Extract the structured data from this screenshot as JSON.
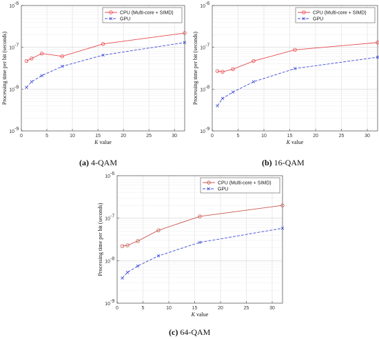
{
  "chart_data": [
    {
      "type": "line",
      "caption_letter": "(a)",
      "caption_text": "4-QAM",
      "xlabel_var": "K",
      "xlabel_rest": "value",
      "ylabel": "Processing time per bit (seconds)",
      "xlim": [
        0,
        32
      ],
      "ylim": [
        1e-09,
        1e-06
      ],
      "yscale": "log",
      "grid": true,
      "legend_position": "top-right",
      "x_ticks": [
        0,
        5,
        10,
        15,
        20,
        25,
        30
      ],
      "y_tick_labels": [
        "10",
        "10",
        "10",
        "10"
      ],
      "y_tick_exponents": [
        "-9",
        "-8",
        "-7",
        "-6"
      ],
      "series": [
        {
          "name": "CPU (Multi-core + SIMD)",
          "color": "#e8474c",
          "marker": "circle",
          "x": [
            1,
            2,
            4,
            8,
            16,
            32
          ],
          "y": [
            4.7e-08,
            5.4e-08,
            7.1e-08,
            6.1e-08,
            1.2e-07,
            2.2e-07
          ]
        },
        {
          "name": "GPU",
          "color": "#3b49d6",
          "marker": "x",
          "x": [
            1,
            2,
            4,
            8,
            16,
            32
          ],
          "y": [
            1.1e-08,
            1.5e-08,
            2.1e-08,
            3.5e-08,
            6.5e-08,
            1.3e-07
          ]
        }
      ]
    },
    {
      "type": "line",
      "caption_letter": "(b)",
      "caption_text": "16-QAM",
      "xlabel_var": "K",
      "xlabel_rest": "value",
      "ylabel": "Processing time per bit (seconds)",
      "xlim": [
        0,
        32
      ],
      "ylim": [
        1e-09,
        1e-06
      ],
      "yscale": "log",
      "grid": true,
      "legend_position": "top-right",
      "x_ticks": [
        0,
        5,
        10,
        15,
        20,
        25,
        30
      ],
      "y_tick_labels": [
        "10",
        "10",
        "10",
        "10"
      ],
      "y_tick_exponents": [
        "-9",
        "-8",
        "-7",
        "-6"
      ],
      "series": [
        {
          "name": "CPU (Multi-core + SIMD)",
          "color": "#e8474c",
          "marker": "circle",
          "x": [
            1,
            2,
            4,
            8,
            16,
            32
          ],
          "y": [
            2.7e-08,
            2.6e-08,
            3e-08,
            4.7e-08,
            8.7e-08,
            1.3e-07
          ]
        },
        {
          "name": "GPU",
          "color": "#3b49d6",
          "marker": "x",
          "x": [
            1,
            2,
            4,
            8,
            16,
            32
          ],
          "y": [
            4e-09,
            6e-09,
            8.5e-09,
            1.5e-08,
            3.1e-08,
            5.8e-08
          ]
        }
      ]
    },
    {
      "type": "line",
      "caption_letter": "(c)",
      "caption_text": "64-QAM",
      "xlabel_var": "K",
      "xlabel_rest": "value",
      "ylabel": "Processing time per bit (seconds)",
      "xlim": [
        0,
        32
      ],
      "ylim": [
        1e-09,
        1e-06
      ],
      "yscale": "log",
      "grid": true,
      "legend_position": "top-right",
      "x_ticks": [
        0,
        5,
        10,
        15,
        20,
        25,
        30
      ],
      "y_tick_labels": [
        "10",
        "10",
        "10",
        "10"
      ],
      "y_tick_exponents": [
        "-9",
        "-8",
        "-7",
        "-6"
      ],
      "series": [
        {
          "name": "CPU (Multi-core + SIMD)",
          "color": "#c7574e",
          "marker": "circle",
          "x": [
            1,
            2,
            4,
            8,
            16,
            32
          ],
          "y": [
            2.2e-08,
            2.3e-08,
            2.9e-08,
            5.2e-08,
            1.1e-07,
            2e-07
          ]
        },
        {
          "name": "GPU",
          "color": "#3b49d6",
          "marker": "x",
          "x": [
            1,
            2,
            4,
            8,
            16,
            32
          ],
          "y": [
            3.9e-09,
            5.3e-09,
            7.5e-09,
            1.3e-08,
            2.7e-08,
            5.8e-08
          ]
        }
      ]
    }
  ]
}
